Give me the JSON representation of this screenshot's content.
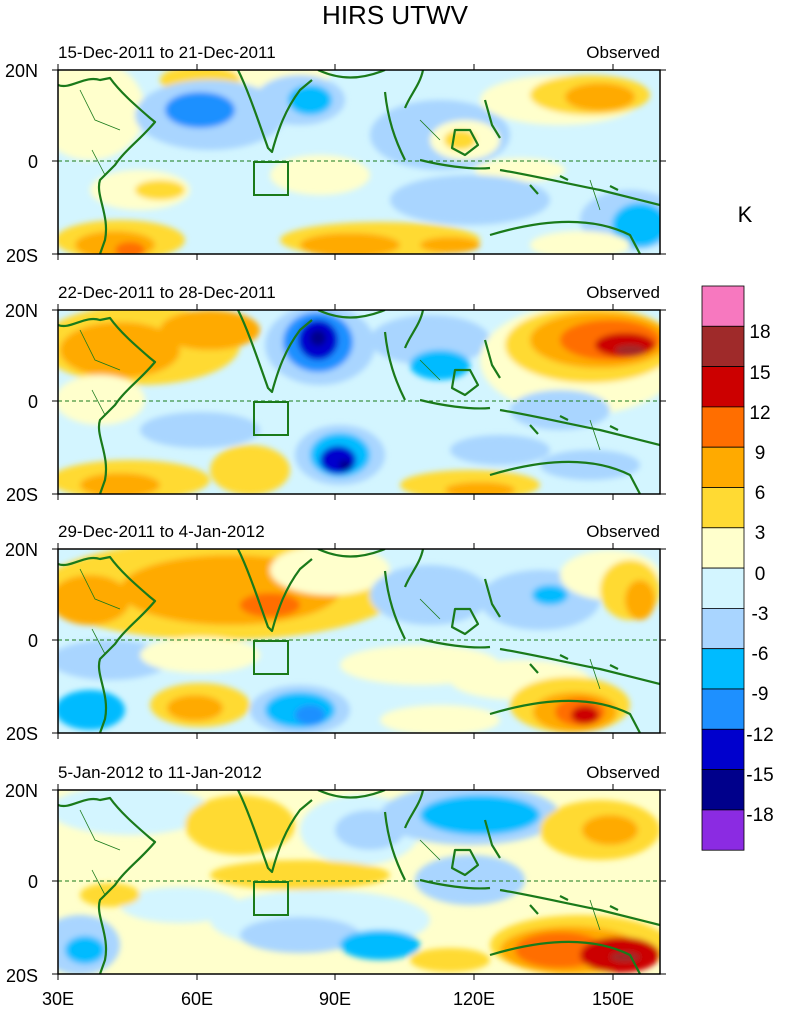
{
  "title": "HIRS UTWV",
  "colorbar": {
    "unit_label": "K",
    "tick_labels": [
      "18",
      "15",
      "12",
      "9",
      "6",
      "3",
      "0",
      "-3",
      "-6",
      "-9",
      "-12",
      "-15",
      "-18"
    ],
    "bins_top_to_bottom": [
      "#f778bf",
      "#9f2a2a",
      "#cc0000",
      "#ff6e00",
      "#ffaa00",
      "#ffda33",
      "#ffffcc",
      "#d3f5ff",
      "#a9d5ff",
      "#00bbff",
      "#1e90ff",
      "#0000cd",
      "#00008b",
      "#8b2be2"
    ]
  },
  "coastline_color": "#1a7a1a",
  "equator_label": "0",
  "x_axis": {
    "tick_labels": [
      "30E",
      "60E",
      "90E",
      "120E",
      "150E"
    ],
    "range_deg": [
      30,
      160
    ]
  },
  "y_axis": {
    "tick_labels": [
      "20N",
      "0",
      "20S"
    ],
    "range_deg": [
      -20,
      20
    ]
  },
  "panels": [
    {
      "date_range": "15-Dec-2011 to 21-Dec-2011",
      "tag": "Observed"
    },
    {
      "date_range": "22-Dec-2011 to 28-Dec-2011",
      "tag": "Observed"
    },
    {
      "date_range": "29-Dec-2011 to 4-Jan-2012",
      "tag": "Observed"
    },
    {
      "date_range": "5-Jan-2012 to 11-Jan-2012",
      "tag": "Observed"
    }
  ]
}
